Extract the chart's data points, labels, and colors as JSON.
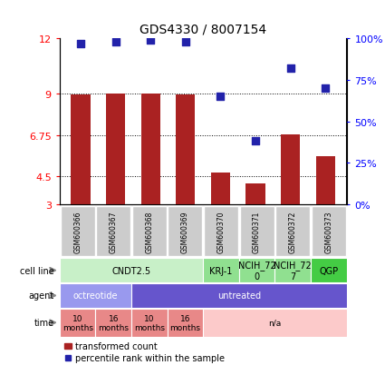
{
  "title": "GDS4330 / 8007154",
  "samples": [
    "GSM600366",
    "GSM600367",
    "GSM600368",
    "GSM600369",
    "GSM600370",
    "GSM600371",
    "GSM600372",
    "GSM600373"
  ],
  "bar_values": [
    8.95,
    9.0,
    9.0,
    8.95,
    4.7,
    4.1,
    6.8,
    5.6
  ],
  "scatter_percentiles": [
    97,
    98,
    99,
    98,
    65,
    38,
    82,
    70
  ],
  "ylim_left": [
    3,
    12
  ],
  "ylim_right": [
    0,
    100
  ],
  "yticks_left": [
    3,
    4.5,
    6.75,
    9,
    12
  ],
  "yticks_right": [
    0,
    25,
    50,
    75,
    100
  ],
  "ytick_labels_right": [
    "0%",
    "25%",
    "50%",
    "75%",
    "100%"
  ],
  "bar_color": "#aa2222",
  "scatter_color": "#2222aa",
  "bar_bottom": 3,
  "cell_line_row": {
    "label": "cell line",
    "groups": [
      {
        "text": "CNDT2.5",
        "span": [
          0,
          4
        ],
        "color": "#c8f0c8"
      },
      {
        "text": "KRJ-1",
        "span": [
          4,
          5
        ],
        "color": "#90e090"
      },
      {
        "text": "NCIH_72\n0",
        "span": [
          5,
          6
        ],
        "color": "#90e090"
      },
      {
        "text": "NCIH_72\n7",
        "span": [
          6,
          7
        ],
        "color": "#90e090"
      },
      {
        "text": "QGP",
        "span": [
          7,
          8
        ],
        "color": "#44cc44"
      }
    ]
  },
  "agent_row": {
    "label": "agent",
    "groups": [
      {
        "text": "octreotide",
        "span": [
          0,
          2
        ],
        "color": "#9999ee"
      },
      {
        "text": "untreated",
        "span": [
          2,
          8
        ],
        "color": "#6655cc"
      }
    ]
  },
  "time_row": {
    "label": "time",
    "groups": [
      {
        "text": "10\nmonths",
        "span": [
          0,
          1
        ],
        "color": "#e88888"
      },
      {
        "text": "16\nmonths",
        "span": [
          1,
          2
        ],
        "color": "#e88888"
      },
      {
        "text": "10\nmonths",
        "span": [
          2,
          3
        ],
        "color": "#e88888"
      },
      {
        "text": "16\nmonths",
        "span": [
          3,
          4
        ],
        "color": "#e88888"
      },
      {
        "text": "n/a",
        "span": [
          4,
          8
        ],
        "color": "#fccaca"
      }
    ]
  },
  "legend_bar_label": "transformed count",
  "legend_scatter_label": "percentile rank within the sample",
  "sample_box_color": "#cccccc",
  "arrow_color": "#999999"
}
